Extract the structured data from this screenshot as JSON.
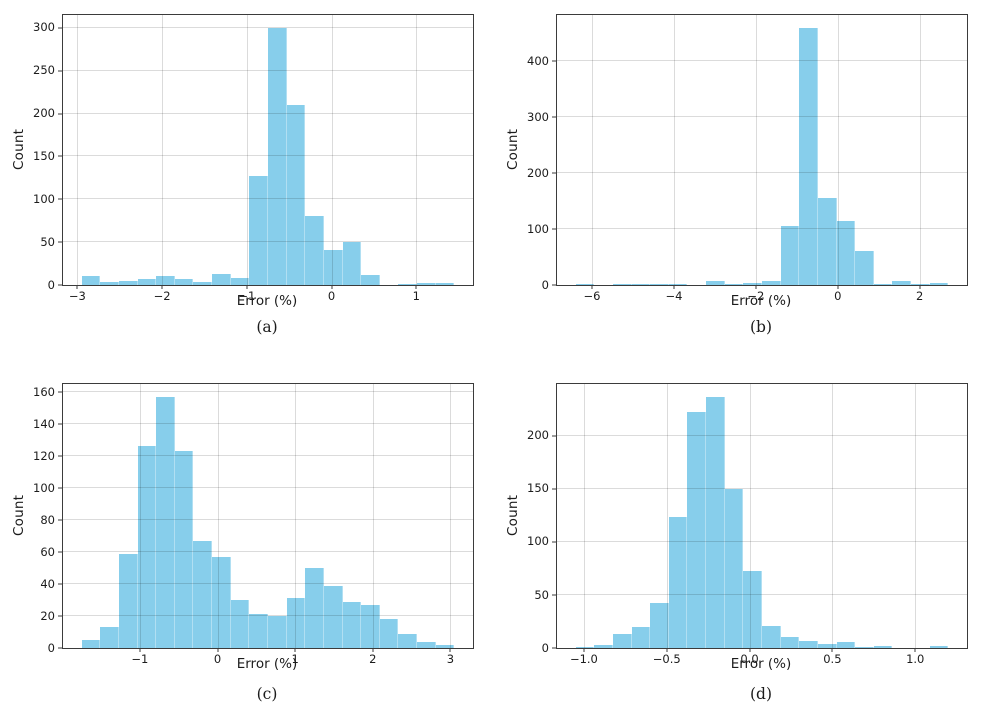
{
  "figure": {
    "background_color": "#ffffff",
    "bar_color": "#87CEEB",
    "grid_color": "rgba(0,0,0,0.14)",
    "spine_color": "#3b3b3b",
    "text_color": "#1c1c1c"
  },
  "chart_data": [
    {
      "type": "bar",
      "subtype": "histogram",
      "id": "a",
      "caption": "(a)",
      "xlabel": "Error (%)",
      "ylabel": "Count",
      "bin_start": -2.95,
      "bin_width": 0.22,
      "counts": [
        11,
        4,
        5,
        7,
        11,
        7,
        4,
        13,
        8,
        127,
        300,
        210,
        81,
        41,
        50,
        12,
        0,
        1,
        2,
        2
      ],
      "xlim": [
        -3.17,
        1.67
      ],
      "ylim": [
        0,
        315
      ],
      "xticks": [
        -3,
        -2,
        -1,
        0,
        1
      ],
      "xtick_labels": [
        "−3",
        "−2",
        "−1",
        "0",
        "1"
      ],
      "yticks": [
        0,
        50,
        100,
        150,
        200,
        250,
        300
      ],
      "ytick_labels": [
        "0",
        "50",
        "100",
        "150",
        "200",
        "250",
        "300"
      ],
      "grid": true,
      "legend": null
    },
    {
      "type": "bar",
      "subtype": "histogram",
      "id": "b",
      "caption": "(b)",
      "xlabel": "Error (%)",
      "ylabel": "Count",
      "bin_start": -6.4,
      "bin_width": 0.455,
      "counts": [
        2,
        0,
        1,
        1,
        1,
        1,
        0,
        8,
        2,
        3,
        7,
        105,
        460,
        155,
        115,
        60,
        2,
        7,
        1,
        3
      ],
      "xlim": [
        -6.855,
        3.155
      ],
      "ylim": [
        0,
        483
      ],
      "xticks": [
        -6,
        -4,
        -2,
        0,
        2
      ],
      "xtick_labels": [
        "−6",
        "−4",
        "−2",
        "0",
        "2"
      ],
      "yticks": [
        0,
        100,
        200,
        300,
        400
      ],
      "ytick_labels": [
        "0",
        "100",
        "200",
        "300",
        "400"
      ],
      "grid": true,
      "legend": null
    },
    {
      "type": "bar",
      "subtype": "histogram",
      "id": "c",
      "caption": "(c)",
      "xlabel": "Error (%)",
      "ylabel": "Count",
      "bin_start": -1.75,
      "bin_width": 0.24,
      "counts": [
        5,
        13,
        59,
        126,
        157,
        123,
        67,
        57,
        30,
        21,
        20,
        31,
        50,
        39,
        29,
        27,
        18,
        9,
        4,
        2
      ],
      "xlim": [
        -1.99,
        3.29
      ],
      "ylim": [
        0,
        165
      ],
      "xticks": [
        -1,
        0,
        1,
        2,
        3
      ],
      "xtick_labels": [
        "−1",
        "0",
        "1",
        "2",
        "3"
      ],
      "yticks": [
        0,
        20,
        40,
        60,
        80,
        100,
        120,
        140,
        160
      ],
      "ytick_labels": [
        "0",
        "20",
        "40",
        "60",
        "80",
        "100",
        "120",
        "140",
        "160"
      ],
      "grid": true,
      "legend": null
    },
    {
      "type": "bar",
      "subtype": "histogram",
      "id": "d",
      "caption": "(d)",
      "xlabel": "Error (%)",
      "ylabel": "Count",
      "bin_start": -1.05,
      "bin_width": 0.1125,
      "counts": [
        1,
        3,
        13,
        20,
        42,
        124,
        223,
        237,
        150,
        73,
        21,
        10,
        7,
        4,
        6,
        1,
        2,
        0,
        0,
        2
      ],
      "xlim": [
        -1.1625,
        1.3125
      ],
      "ylim": [
        0,
        249
      ],
      "xticks": [
        -1.0,
        -0.5,
        0.0,
        0.5,
        1.0
      ],
      "xtick_labels": [
        "−1.0",
        "−0.5",
        "0.0",
        "0.5",
        "1.0"
      ],
      "yticks": [
        0,
        50,
        100,
        150,
        200
      ],
      "ytick_labels": [
        "0",
        "50",
        "100",
        "150",
        "200"
      ],
      "grid": true,
      "legend": null
    }
  ]
}
